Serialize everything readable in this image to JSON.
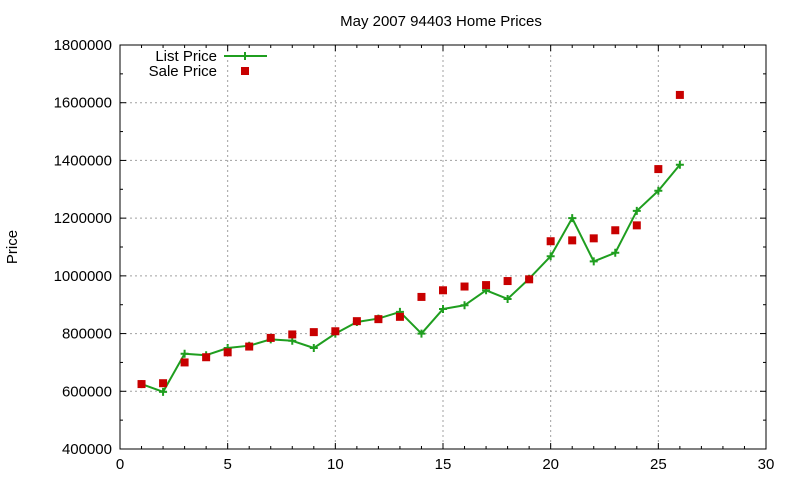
{
  "chart_data": {
    "type": "line",
    "title": "May 2007 94403 Home Prices",
    "xlabel": "",
    "ylabel": "Price",
    "xlim": [
      0,
      30
    ],
    "ylim": [
      400000,
      1800000
    ],
    "x_ticks": [
      0,
      5,
      10,
      15,
      20,
      25,
      30
    ],
    "y_ticks": [
      400000,
      600000,
      800000,
      1000000,
      1200000,
      1400000,
      1600000,
      1800000
    ],
    "grid": true,
    "legend_position": "top-left",
    "series": [
      {
        "name": "List Price",
        "style": "line-with-plus-markers",
        "color": "#1f9e1f",
        "x": [
          1,
          2,
          3,
          4,
          5,
          6,
          7,
          8,
          9,
          10,
          11,
          12,
          13,
          14,
          15,
          16,
          17,
          18,
          19,
          20,
          21,
          22,
          23,
          24,
          25,
          26
        ],
        "y": [
          625000,
          598000,
          730000,
          725000,
          750000,
          758000,
          780000,
          775000,
          750000,
          800000,
          840000,
          852000,
          875000,
          800000,
          885000,
          898000,
          950000,
          920000,
          990000,
          1068000,
          1200000,
          1050000,
          1080000,
          1225000,
          1295000,
          1385000
        ]
      },
      {
        "name": "Sale Price",
        "style": "square-markers",
        "color": "#c80000",
        "x": [
          1,
          2,
          3,
          4,
          5,
          6,
          7,
          8,
          9,
          10,
          11,
          12,
          13,
          14,
          15,
          16,
          17,
          18,
          19,
          20,
          21,
          22,
          23,
          24,
          25,
          26
        ],
        "y": [
          625000,
          628000,
          700000,
          718000,
          735000,
          755000,
          785000,
          797000,
          805000,
          808000,
          843000,
          850000,
          858000,
          927000,
          950000,
          963000,
          968000,
          982000,
          988000,
          1120000,
          1123000,
          1130000,
          1158000,
          1175000,
          1370000,
          1627000
        ]
      }
    ]
  }
}
